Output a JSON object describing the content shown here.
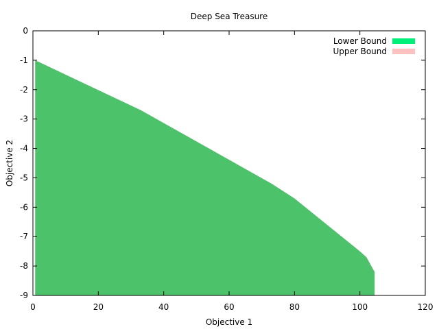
{
  "chart_data": {
    "type": "area",
    "title": "Deep Sea Treasure",
    "xlabel": "Objective 1",
    "ylabel": "Objective 2",
    "xlim": [
      0,
      120
    ],
    "ylim": [
      -9,
      0
    ],
    "x_ticks": [
      0,
      20,
      40,
      60,
      80,
      100,
      120
    ],
    "y_ticks": [
      0,
      -1,
      -2,
      -3,
      -4,
      -5,
      -6,
      -7,
      -8,
      -9
    ],
    "legend_position": "top-right",
    "grid": false,
    "series": [
      {
        "name": "Lower Bound",
        "color": "#00f07a",
        "points": [
          [
            0.7,
            -1.0
          ],
          [
            33,
            -2.7
          ],
          [
            73,
            -5.2
          ],
          [
            80,
            -5.7
          ],
          [
            100,
            -7.5
          ],
          [
            102,
            -7.7
          ],
          [
            104.5,
            -8.2
          ],
          [
            104.5,
            -9.0
          ],
          [
            0.7,
            -9.0
          ]
        ]
      },
      {
        "name": "Upper Bound",
        "color": "#ffc0c0",
        "points": [
          [
            0.7,
            -1.0
          ],
          [
            33,
            -2.7
          ],
          [
            73,
            -5.2
          ],
          [
            80,
            -5.7
          ],
          [
            100,
            -7.5
          ],
          [
            102,
            -7.7
          ],
          [
            104.5,
            -8.2
          ],
          [
            104.5,
            -9.0
          ],
          [
            0.7,
            -9.0
          ]
        ]
      }
    ],
    "overlap_color": "#4cc26a"
  }
}
